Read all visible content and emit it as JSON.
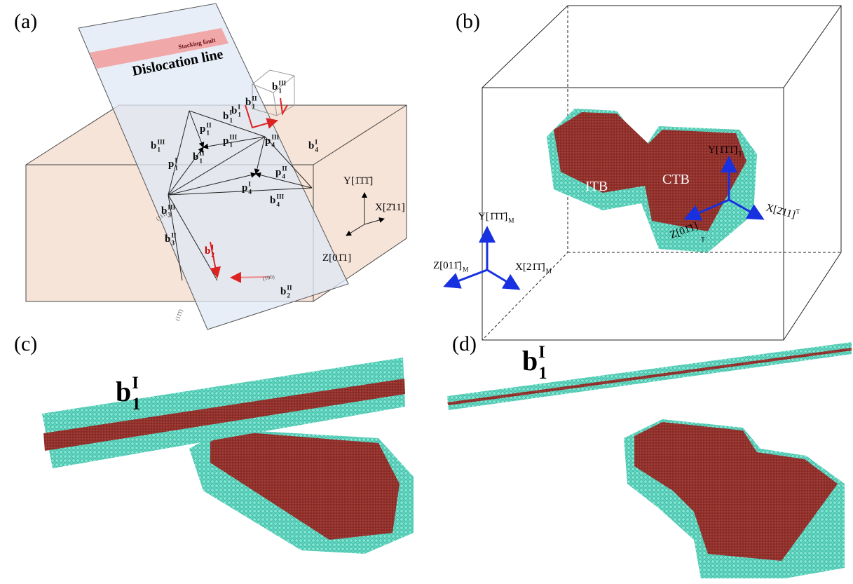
{
  "panels": [
    "(a)",
    "(b)",
    "(c)",
    "(d)"
  ],
  "panel_a": {
    "title": "Dislocation line",
    "stacking": "Stacking fault",
    "vectors": [
      {
        "base": "b",
        "sup": "III",
        "sub": "1"
      },
      {
        "base": "p",
        "sup": "I",
        "sub": "1"
      },
      {
        "base": "p",
        "sup": "II",
        "sub": "1"
      },
      {
        "base": "p",
        "sup": "III",
        "sub": "1"
      },
      {
        "base": "b",
        "sup": "II",
        "sub": "1"
      },
      {
        "base": "b",
        "sup": "I",
        "sub": "1"
      },
      {
        "base": "b",
        "sup": "I",
        "sub": "1"
      },
      {
        "base": "b",
        "sup": "II",
        "sub": "1"
      },
      {
        "base": "b",
        "sup": "III",
        "sub": "1"
      },
      {
        "base": "b",
        "sup": "I",
        "sub": "4"
      },
      {
        "base": "p",
        "sup": "III",
        "sub": "4"
      },
      {
        "base": "p",
        "sup": "II",
        "sub": "4"
      },
      {
        "base": "p",
        "sup": "I",
        "sub": "4"
      },
      {
        "base": "b",
        "sup": "III",
        "sub": "4"
      },
      {
        "base": "b",
        "sup": "III",
        "sub": "3"
      },
      {
        "base": "b",
        "sup": "II",
        "sub": "3"
      },
      {
        "base": "b",
        "sup": "I",
        "sub": "2"
      },
      {
        "base": "b",
        "sup": "II",
        "sub": "2"
      }
    ],
    "planes": [
      "(111̄)",
      "(100)",
      "(11̄1̄)"
    ],
    "axes": [
      "Y[1̄1̄1̄]",
      "X[2̄11]",
      "Z[01̄1]"
    ]
  },
  "panel_b": {
    "labels": [
      "ITB",
      "CTB"
    ],
    "axes": [
      {
        "base": "Y[1̄1̄1̄]",
        "sub": "T"
      },
      {
        "base": "X[2̄11]",
        "sub": "T"
      },
      {
        "base": "Z[01̄1]",
        "sub": "T"
      },
      {
        "base": "Y[1̄1̄1̄]",
        "sub": "M"
      },
      {
        "base": "Z[011̄]",
        "sub": "M"
      },
      {
        "base": "X[21̄1̄]",
        "sub": "M"
      }
    ]
  },
  "panel_c": {
    "label": {
      "base": "b",
      "sup": "I",
      "sub": "1"
    }
  },
  "panel_d": {
    "label": {
      "base": "b",
      "sup": "I",
      "sub": "1"
    }
  }
}
